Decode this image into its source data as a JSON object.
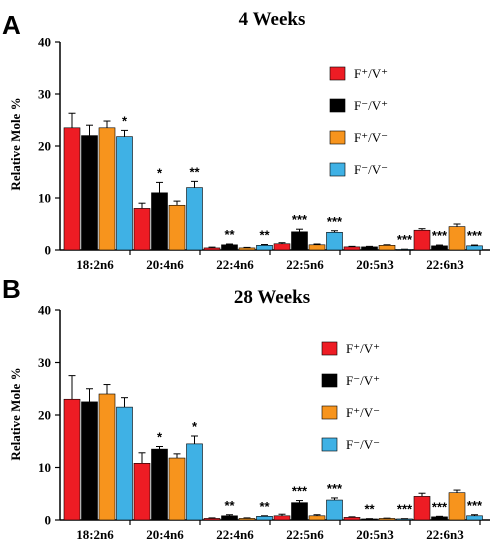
{
  "colors": {
    "F+/V+": "#ee1c24",
    "F-/V+": "#000000",
    "F+/V-": "#f7941d",
    "F-/V-": "#3fb1e5"
  },
  "chart_data": [
    {
      "panel": "A",
      "type": "bar",
      "title": "4 Weeks",
      "ylabel": "Relative Mole %",
      "ylim": [
        0,
        40
      ],
      "yticks": [
        0,
        10,
        20,
        30,
        40
      ],
      "categories": [
        "18:2n6",
        "20:4n6",
        "22:4n6",
        "22:5n6",
        "20:5n3",
        "22:6n3"
      ],
      "legend_position": "right",
      "series": [
        {
          "name": "F⁺/V⁺",
          "key": "F+/V+",
          "values": [
            23.5,
            8.0,
            0.4,
            1.2,
            0.6,
            3.8
          ],
          "errors": [
            2.8,
            1.0,
            0.15,
            0.2,
            0.1,
            0.3
          ]
        },
        {
          "name": "F⁻/V⁺",
          "key": "F-/V+",
          "values": [
            22.0,
            11.0,
            1.0,
            3.5,
            0.6,
            0.8
          ],
          "errors": [
            2.0,
            2.0,
            0.15,
            0.5,
            0.1,
            0.15
          ]
        },
        {
          "name": "F⁺/V⁻",
          "key": "F+/V-",
          "values": [
            23.5,
            8.6,
            0.4,
            1.0,
            0.9,
            4.5
          ],
          "errors": [
            1.3,
            0.8,
            0.1,
            0.15,
            0.1,
            0.5
          ]
        },
        {
          "name": "F⁻/V⁻",
          "key": "F-/V-",
          "values": [
            21.8,
            12.0,
            0.9,
            3.4,
            0.1,
            0.8
          ],
          "errors": [
            1.2,
            1.2,
            0.15,
            0.3,
            0.05,
            0.15
          ]
        }
      ],
      "annotations": [
        {
          "category": "18:2n6",
          "series": "F-/V-",
          "text": "*"
        },
        {
          "category": "20:4n6",
          "series": "F-/V+",
          "text": "*"
        },
        {
          "category": "20:4n6",
          "series": "F-/V-",
          "text": "**"
        },
        {
          "category": "22:4n6",
          "series": "F-/V+",
          "text": "**"
        },
        {
          "category": "22:4n6",
          "series": "F-/V-",
          "text": "**"
        },
        {
          "category": "22:5n6",
          "series": "F-/V+",
          "text": "***"
        },
        {
          "category": "22:5n6",
          "series": "F-/V-",
          "text": "***"
        },
        {
          "category": "20:5n3",
          "series": "F-/V-",
          "text": "***"
        },
        {
          "category": "22:6n3",
          "series": "F-/V+",
          "text": "***"
        },
        {
          "category": "22:6n3",
          "series": "F-/V-",
          "text": "***"
        }
      ]
    },
    {
      "panel": "B",
      "type": "bar",
      "title": "28 Weeks",
      "ylabel": "Relative Mole %",
      "ylim": [
        0,
        40
      ],
      "yticks": [
        0,
        10,
        20,
        30,
        40
      ],
      "categories": [
        "18:2n6",
        "20:4n6",
        "22:4n6",
        "22:5n6",
        "20:5n3",
        "22:6n3"
      ],
      "legend_position": "right",
      "series": [
        {
          "name": "F⁺/V⁺",
          "key": "F+/V+",
          "values": [
            23.0,
            10.8,
            0.3,
            0.8,
            0.5,
            4.5
          ],
          "errors": [
            4.5,
            2.0,
            0.1,
            0.3,
            0.1,
            0.6
          ]
        },
        {
          "name": "F⁻/V⁺",
          "key": "F-/V+",
          "values": [
            22.5,
            13.5,
            0.8,
            3.3,
            0.2,
            0.6
          ],
          "errors": [
            2.5,
            0.5,
            0.2,
            0.4,
            0.05,
            0.1
          ]
        },
        {
          "name": "F⁺/V⁻",
          "key": "F+/V-",
          "values": [
            24.0,
            11.8,
            0.3,
            0.8,
            0.3,
            5.2
          ],
          "errors": [
            1.8,
            0.8,
            0.1,
            0.2,
            0.05,
            0.5
          ]
        },
        {
          "name": "F⁻/V⁻",
          "key": "F-/V-",
          "values": [
            21.5,
            14.5,
            0.7,
            3.8,
            0.2,
            0.8
          ],
          "errors": [
            1.8,
            1.5,
            0.1,
            0.4,
            0.05,
            0.2
          ]
        }
      ],
      "annotations": [
        {
          "category": "20:4n6",
          "series": "F-/V+",
          "text": "*"
        },
        {
          "category": "20:4n6",
          "series": "F-/V-",
          "text": "*"
        },
        {
          "category": "22:4n6",
          "series": "F-/V+",
          "text": "**"
        },
        {
          "category": "22:4n6",
          "series": "F-/V-",
          "text": "**"
        },
        {
          "category": "22:5n6",
          "series": "F-/V+",
          "text": "***"
        },
        {
          "category": "22:5n6",
          "series": "F-/V-",
          "text": "***"
        },
        {
          "category": "20:5n3",
          "series": "F-/V+",
          "text": "**"
        },
        {
          "category": "20:5n3",
          "series": "F-/V-",
          "text": "***"
        },
        {
          "category": "22:6n3",
          "series": "F-/V+",
          "text": "***"
        },
        {
          "category": "22:6n3",
          "series": "F-/V-",
          "text": "***"
        }
      ]
    }
  ]
}
